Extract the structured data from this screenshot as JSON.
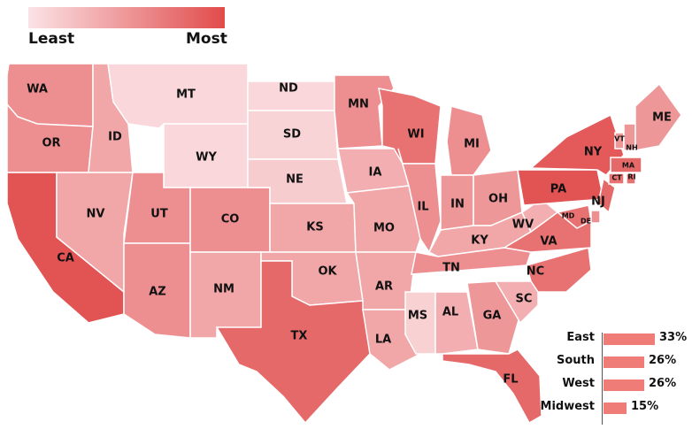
{
  "legend": {
    "low_label": "Least",
    "high_label": "Most",
    "color_low": "#fbe3e6",
    "color_high": "#e14b4b"
  },
  "states": [
    {
      "abbr": "WA",
      "level": 0.55
    },
    {
      "abbr": "OR",
      "level": 0.55
    },
    {
      "abbr": "CA",
      "level": 0.95
    },
    {
      "abbr": "ID",
      "level": 0.4
    },
    {
      "abbr": "NV",
      "level": 0.4
    },
    {
      "abbr": "MT",
      "level": 0.08
    },
    {
      "abbr": "WY",
      "level": 0.08
    },
    {
      "abbr": "UT",
      "level": 0.55
    },
    {
      "abbr": "AZ",
      "level": 0.55
    },
    {
      "abbr": "CO",
      "level": 0.55
    },
    {
      "abbr": "NM",
      "level": 0.4
    },
    {
      "abbr": "ND",
      "level": 0.08
    },
    {
      "abbr": "SD",
      "level": 0.1
    },
    {
      "abbr": "NE",
      "level": 0.15
    },
    {
      "abbr": "KS",
      "level": 0.4
    },
    {
      "abbr": "OK",
      "level": 0.4
    },
    {
      "abbr": "TX",
      "level": 0.8
    },
    {
      "abbr": "MN",
      "level": 0.55
    },
    {
      "abbr": "IA",
      "level": 0.35
    },
    {
      "abbr": "MO",
      "level": 0.4
    },
    {
      "abbr": "AR",
      "level": 0.4
    },
    {
      "abbr": "LA",
      "level": 0.4
    },
    {
      "abbr": "WI",
      "level": 0.75
    },
    {
      "abbr": "IL",
      "level": 0.55
    },
    {
      "abbr": "MS",
      "level": 0.12
    },
    {
      "abbr": "MI",
      "level": 0.55
    },
    {
      "abbr": "IN",
      "level": 0.5
    },
    {
      "abbr": "OH",
      "level": 0.5
    },
    {
      "abbr": "KY",
      "level": 0.4
    },
    {
      "abbr": "TN",
      "level": 0.55
    },
    {
      "abbr": "AL",
      "level": 0.35
    },
    {
      "abbr": "GA",
      "level": 0.5
    },
    {
      "abbr": "FL",
      "level": 0.8
    },
    {
      "abbr": "SC",
      "level": 0.35
    },
    {
      "abbr": "NC",
      "level": 0.75
    },
    {
      "abbr": "VA",
      "level": 0.75
    },
    {
      "abbr": "WV",
      "level": 0.35
    },
    {
      "abbr": "PA",
      "level": 0.95
    },
    {
      "abbr": "NY",
      "level": 0.9
    },
    {
      "abbr": "NJ",
      "level": 0.8
    },
    {
      "abbr": "MD",
      "level": 0.75
    },
    {
      "abbr": "DE",
      "level": 0.55
    },
    {
      "abbr": "VT",
      "level": 0.5
    },
    {
      "abbr": "NH",
      "level": 0.5
    },
    {
      "abbr": "ME",
      "level": 0.5
    },
    {
      "abbr": "MA",
      "level": 0.8
    },
    {
      "abbr": "CT",
      "level": 0.75
    },
    {
      "abbr": "RI",
      "level": 0.75
    }
  ],
  "regions": [
    {
      "name": "East",
      "value": 33,
      "label": "33%"
    },
    {
      "name": "South",
      "value": 26,
      "label": "26%"
    },
    {
      "name": "West",
      "value": 26,
      "label": "26%"
    },
    {
      "name": "Midwest",
      "value": 15,
      "label": "15%"
    }
  ]
}
